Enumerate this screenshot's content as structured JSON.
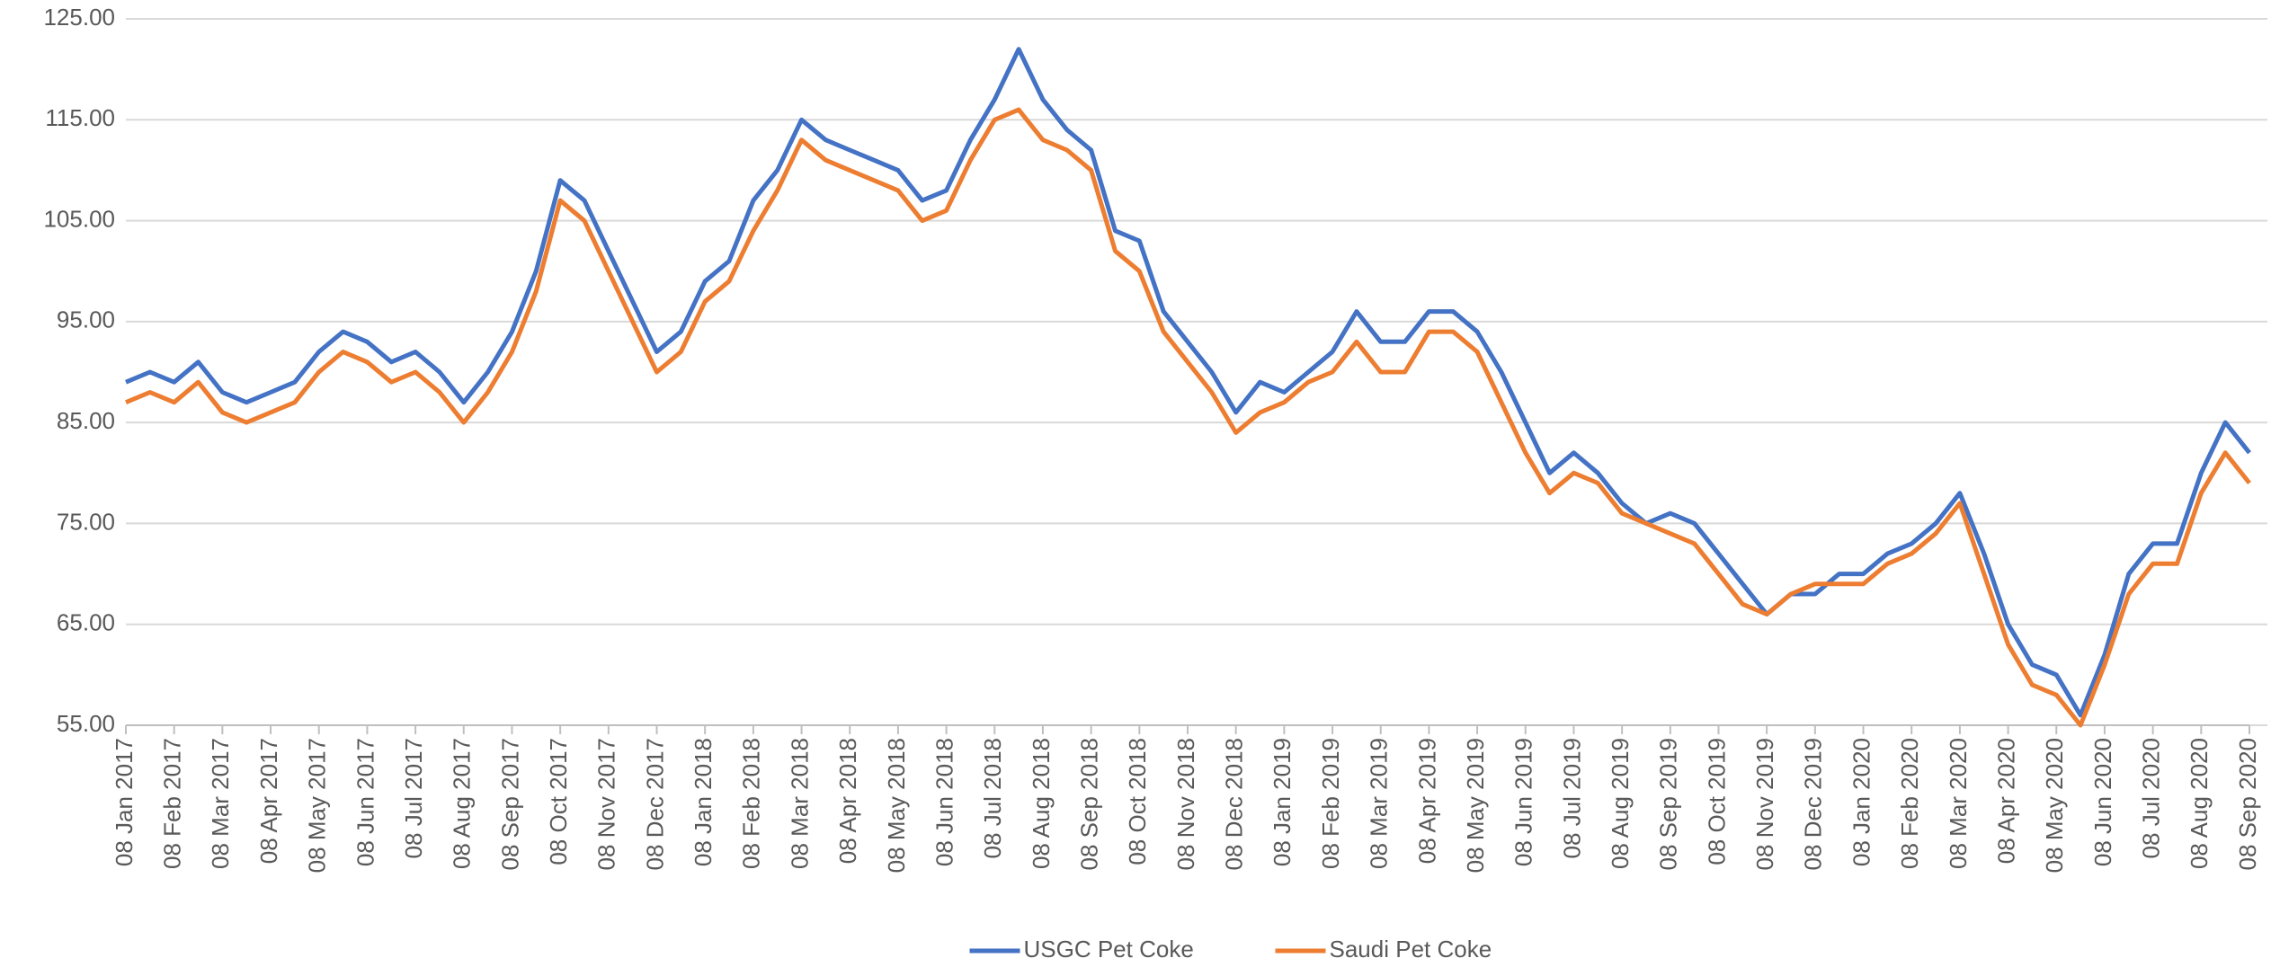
{
  "chart_data": {
    "type": "line",
    "categories": [
      "08 Jan 2017",
      null,
      "08 Feb 2017",
      null,
      "08 Mar 2017",
      null,
      "08 Apr 2017",
      null,
      "08 May 2017",
      null,
      "08 Jun 2017",
      null,
      "08 Jul 2017",
      null,
      "08 Aug 2017",
      null,
      "08 Sep 2017",
      null,
      "08 Oct 2017",
      null,
      "08 Nov 2017",
      null,
      "08 Dec 2017",
      null,
      "08 Jan 2018",
      null,
      "08 Feb 2018",
      null,
      "08 Mar 2018",
      null,
      "08 Apr 2018",
      null,
      "08 May 2018",
      null,
      "08 Jun 2018",
      null,
      "08 Jul 2018",
      null,
      "08 Aug 2018",
      null,
      "08 Sep 2018",
      null,
      "08 Oct 2018",
      null,
      "08 Nov 2018",
      null,
      "08 Dec 2018",
      null,
      "08 Jan 2019",
      null,
      "08 Feb 2019",
      null,
      "08 Mar 2019",
      null,
      "08 Apr 2019",
      null,
      "08 May 2019",
      null,
      "08 Jun 2019",
      null,
      "08 Jul 2019",
      null,
      "08 Aug 2019",
      null,
      "08 Sep 2019",
      null,
      "08 Oct 2019",
      null,
      "08 Nov 2019",
      null,
      "08 Dec 2019",
      null,
      "08 Jan 2020",
      null,
      "08 Feb 2020",
      null,
      "08 Mar 2020",
      null,
      "08 Apr 2020",
      null,
      "08 May 2020",
      null,
      "08 Jun 2020",
      null,
      "08 Jul 2020",
      null,
      "08 Aug 2020",
      null,
      "08 Sep 2020"
    ],
    "series": [
      {
        "name": "USGC Pet Coke",
        "color": "#4472c4",
        "values": [
          89,
          90,
          89,
          91,
          88,
          87,
          88,
          89,
          92,
          94,
          93,
          91,
          92,
          90,
          87,
          90,
          94,
          100,
          109,
          107,
          102,
          97,
          92,
          94,
          99,
          101,
          107,
          110,
          115,
          113,
          112,
          111,
          110,
          107,
          108,
          113,
          117,
          122,
          117,
          114,
          112,
          104,
          103,
          96,
          93,
          90,
          86,
          89,
          88,
          90,
          92,
          96,
          93,
          93,
          96,
          96,
          94,
          90,
          85,
          80,
          82,
          80,
          77,
          75,
          76,
          75,
          72,
          69,
          66,
          68,
          68,
          70,
          70,
          72,
          73,
          75,
          78,
          72,
          65,
          61,
          60,
          56,
          62,
          70,
          73,
          73,
          80,
          85,
          82
        ]
      },
      {
        "name": "Saudi Pet Coke",
        "color": "#ed7d31",
        "values": [
          87,
          88,
          87,
          89,
          86,
          85,
          86,
          87,
          90,
          92,
          91,
          89,
          90,
          88,
          85,
          88,
          92,
          98,
          107,
          105,
          100,
          95,
          90,
          92,
          97,
          99,
          104,
          108,
          113,
          111,
          110,
          109,
          108,
          105,
          106,
          111,
          115,
          116,
          113,
          112,
          110,
          102,
          100,
          94,
          91,
          88,
          84,
          86,
          87,
          89,
          90,
          93,
          90,
          90,
          94,
          94,
          92,
          87,
          82,
          78,
          80,
          79,
          76,
          75,
          74,
          73,
          70,
          67,
          66,
          68,
          69,
          69,
          69,
          71,
          72,
          74,
          77,
          70,
          63,
          59,
          58,
          55,
          61,
          68,
          71,
          71,
          78,
          82,
          79
        ]
      }
    ],
    "ylim": [
      55,
      125
    ],
    "yticks": [
      {
        "value": 55,
        "label": "55.00"
      },
      {
        "value": 65,
        "label": "65.00"
      },
      {
        "value": 75,
        "label": "75.00"
      },
      {
        "value": 85,
        "label": "85.00"
      },
      {
        "value": 95,
        "label": "95.00"
      },
      {
        "value": 105,
        "label": "105.00"
      },
      {
        "value": 115,
        "label": "115.00"
      },
      {
        "value": 125,
        "label": "125.00"
      }
    ],
    "grid": true,
    "legend": "bottom"
  }
}
